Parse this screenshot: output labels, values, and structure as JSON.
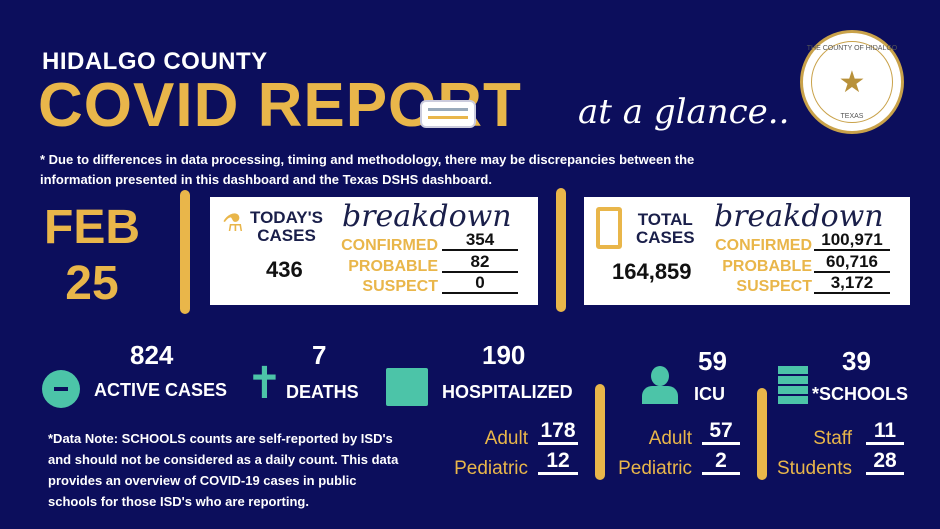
{
  "header": {
    "county": "HIDALGO COUNTY",
    "title": "COVID REPORT",
    "tagline": "at a glance..",
    "seal_text": "THE COUNTY OF HIDALGO",
    "seal_state": "TEXAS"
  },
  "disclaimer": "* Due to differences in data processing, timing and methodology, there may be discrepancies between the information presented in this dashboard and the Texas DSHS dashboard.",
  "date": {
    "month": "FEB",
    "day": "25"
  },
  "today": {
    "label1": "TODAY'S",
    "label2": "CASES",
    "total": "436",
    "breakdown": "breakdown",
    "confirmed_label": "CONFIRMED",
    "confirmed": "354",
    "probable_label": "PROBABLE",
    "probable": "82",
    "suspect_label": "SUSPECT",
    "suspect": "0"
  },
  "total": {
    "label1": "TOTAL",
    "label2": "CASES",
    "total": "164,859",
    "breakdown": "breakdown",
    "confirmed_label": "CONFIRMED",
    "confirmed": "100,971",
    "probable_label": "PROBABLE",
    "probable": "60,716",
    "suspect_label": "SUSPECT",
    "suspect": "3,172"
  },
  "stats": {
    "active": {
      "value": "824",
      "label": "ACTIVE CASES"
    },
    "deaths": {
      "value": "7",
      "label": "DEATHS"
    },
    "hospitalized": {
      "value": "190",
      "label": "HOSPITALIZED",
      "adult_label": "Adult",
      "adult": "178",
      "pediatric_label": "Pediatric",
      "pediatric": "12"
    },
    "icu": {
      "value": "59",
      "label": "ICU",
      "adult_label": "Adult",
      "adult": "57",
      "pediatric_label": "Pediatric",
      "pediatric": "2"
    },
    "schools": {
      "value": "39",
      "label": "*SCHOOLS",
      "staff_label": "Staff",
      "staff": "11",
      "students_label": "Students",
      "students": "28"
    }
  },
  "note": "*Data Note: SCHOOLS counts are self-reported by ISD's and should not be considered as a daily count. This data provides an overview of COVID-19 cases in public schools for those ISD's who are reporting.",
  "colors": {
    "background": "#0c0e5c",
    "gold": "#e9b64a",
    "teal": "#4cc4a8"
  }
}
